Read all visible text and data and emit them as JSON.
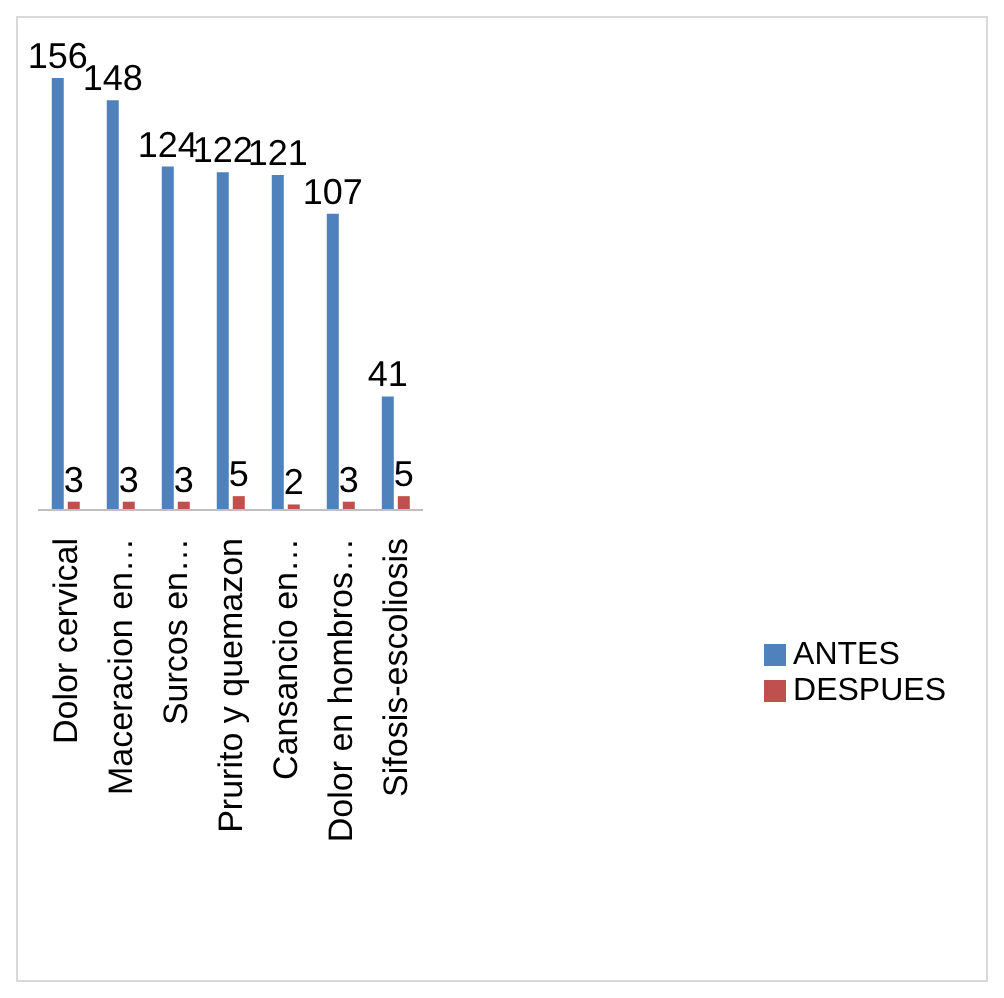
{
  "chart_data": {
    "type": "bar",
    "categories": [
      "Dolor cervical",
      "Maceracion en…",
      "Surcos en…",
      "Prurito y quemazon",
      "Cansancio en…",
      "Dolor en hombros…",
      "Sifosis-escoliosis"
    ],
    "series": [
      {
        "name": "ANTES",
        "color": "#4f81bd",
        "values": [
          156,
          148,
          124,
          122,
          121,
          107,
          41
        ]
      },
      {
        "name": "DESPUES",
        "color": "#c0504d",
        "values": [
          3,
          3,
          3,
          5,
          2,
          3,
          5
        ]
      }
    ],
    "data_labels": true,
    "legend": "right",
    "tick_labels": "x",
    "grid": false
  }
}
